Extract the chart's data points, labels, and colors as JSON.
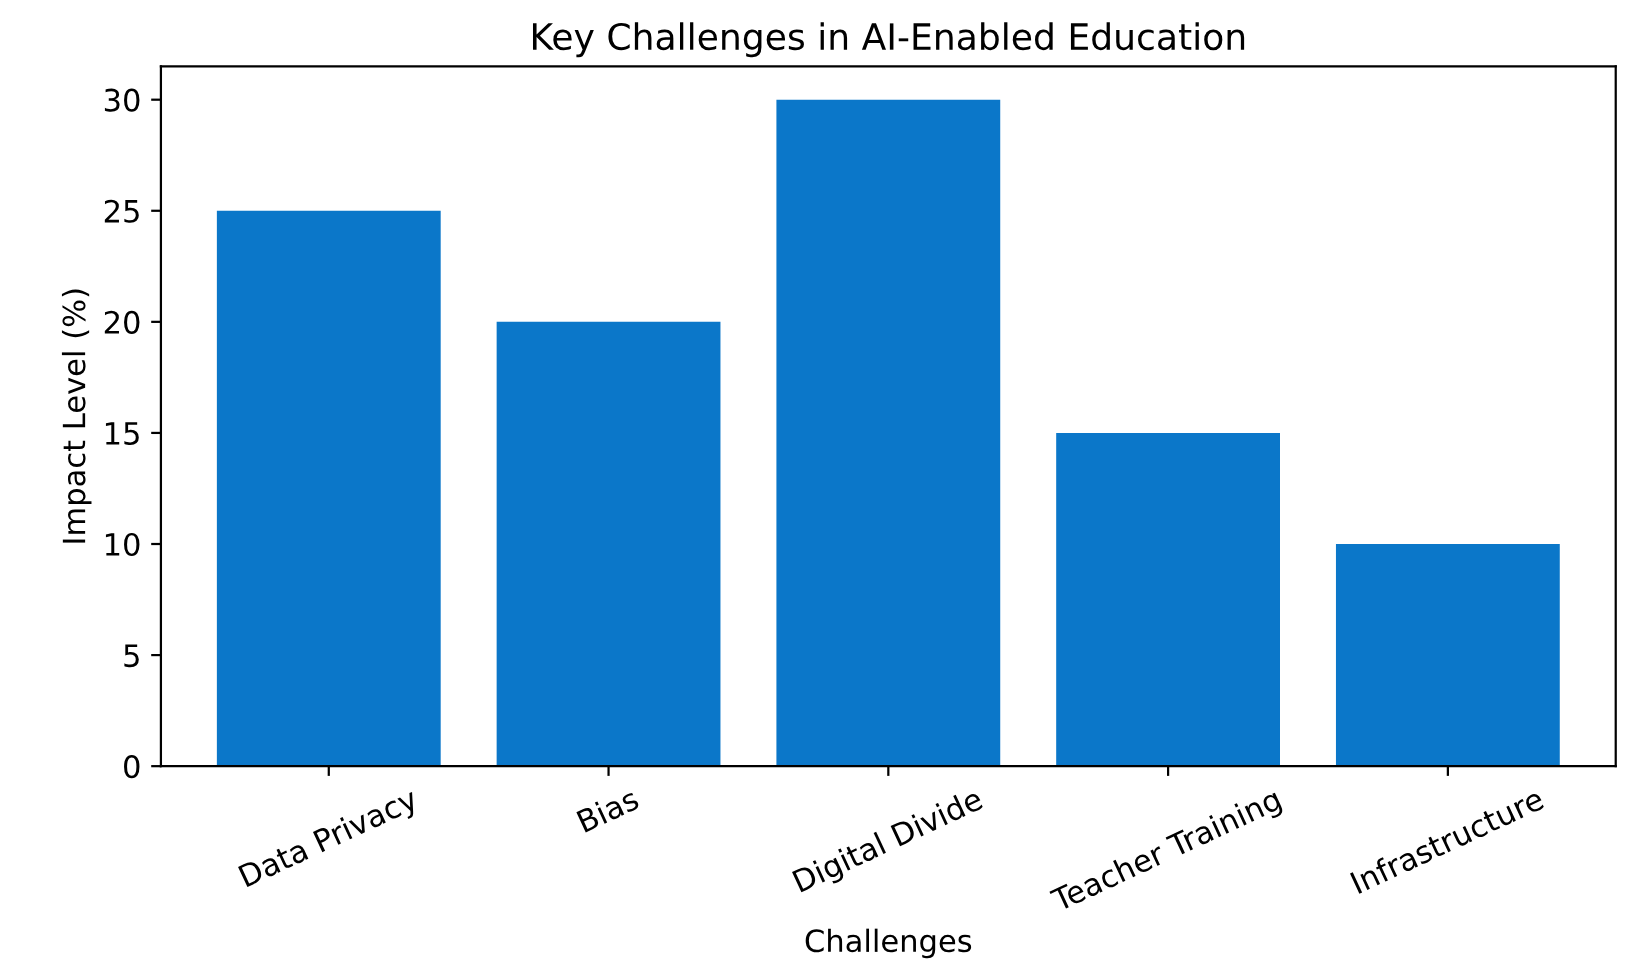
{
  "chart_data": {
    "type": "bar",
    "title": "Key Challenges in AI-Enabled Education",
    "xlabel": "Challenges",
    "ylabel": "Impact Level (%)",
    "categories": [
      "Data Privacy",
      "Bias",
      "Digital Divide",
      "Teacher Training",
      "Infrastructure"
    ],
    "values": [
      25,
      20,
      30,
      15,
      10
    ],
    "color": "#0b77c9",
    "ylim": [
      0,
      31.5
    ],
    "yticks": [
      0,
      5,
      10,
      15,
      20,
      25,
      30
    ],
    "grid": false,
    "legend": false
  }
}
